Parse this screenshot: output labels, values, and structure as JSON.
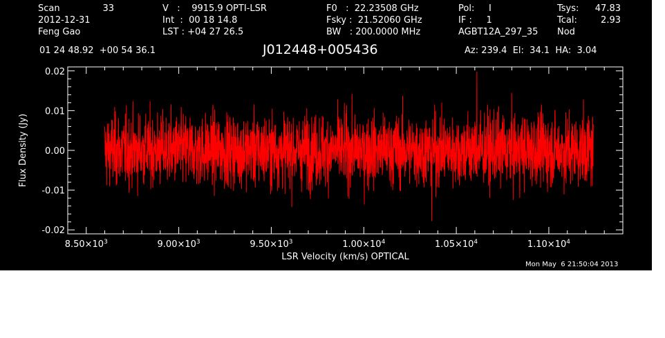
{
  "header": {
    "col1": [
      "Scan",
      "2012-12-31",
      "Feng Gao"
    ],
    "scan_number": "33",
    "col2": [
      "V   :    9915.9 OPTI-LSR",
      "Int  :  00 18 14.8",
      "LST : +04 27 26.5"
    ],
    "col3": [
      "F0   :  22.23508 GHz",
      "Fsky :  21.52060 GHz",
      "BW   : 200.0000 MHz"
    ],
    "col4": [
      "Pol:     I",
      "IF :     1",
      "AGBT12A_297_35"
    ],
    "col5_labels": [
      "Tsys:",
      "Tcal:",
      "Nod"
    ],
    "col5_values": [
      "47.83",
      "2.93",
      ""
    ],
    "coords": "01 24 48.92  +00 54 36.1",
    "source": "J012448+005436",
    "azel": "Az: 239.4  El:  34.1  HA:  3.04",
    "timestamp": "Mon May  6 21:50:04 2013"
  },
  "colors": {
    "background": "#000000",
    "foreground": "#ffffff",
    "spectrum": "#ff0000"
  },
  "chart_data": {
    "type": "line",
    "xlabel": "LSR Velocity (km/s) OPTICAL",
    "ylabel": "Flux Density (Jy)",
    "xlim": [
      8400,
      11400
    ],
    "ylim": [
      -0.021,
      0.021
    ],
    "x_ticks": [
      {
        "value": 8500,
        "mantissa": "8.50",
        "exp": "3"
      },
      {
        "value": 9000,
        "mantissa": "9.00",
        "exp": "3"
      },
      {
        "value": 9500,
        "mantissa": "9.50",
        "exp": "3"
      },
      {
        "value": 10000,
        "mantissa": "1.00",
        "exp": "4"
      },
      {
        "value": 10500,
        "mantissa": "1.05",
        "exp": "4"
      },
      {
        "value": 11000,
        "mantissa": "1.10",
        "exp": "4"
      }
    ],
    "y_ticks": [
      {
        "value": 0.02,
        "label": "0.02"
      },
      {
        "value": 0.01,
        "label": "0.01"
      },
      {
        "value": 0.0,
        "label": "0.00"
      },
      {
        "value": -0.01,
        "label": "-0.01"
      },
      {
        "value": -0.02,
        "label": "-0.02"
      }
    ],
    "series": [
      {
        "x_start": 8600,
        "x_end": 11240,
        "noise_rms": 0.0045,
        "mean": 0.0,
        "max_value": 0.0198,
        "min_value": -0.0178
      }
    ]
  }
}
